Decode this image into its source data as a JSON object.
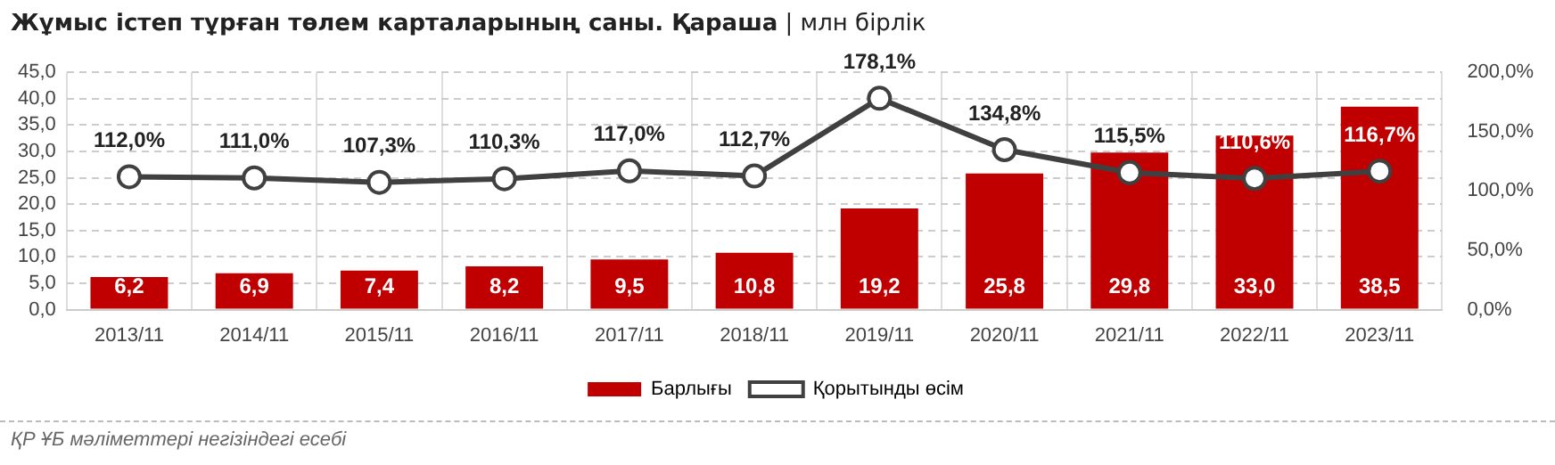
{
  "chart_data": {
    "type": "bar",
    "title": "Жұмыс істеп тұрған төлем карталарының саны. Қараша",
    "subtitle": "| млн бірлік",
    "categories": [
      "2013/11",
      "2014/11",
      "2015/11",
      "2016/11",
      "2017/11",
      "2018/11",
      "2019/11",
      "2020/11",
      "2021/11",
      "2022/11",
      "2023/11"
    ],
    "series": [
      {
        "name": "Барлығы",
        "color": "#c00000",
        "values": [
          6.2,
          6.9,
          7.4,
          8.2,
          9.5,
          10.8,
          19.2,
          25.8,
          29.8,
          33.0,
          38.5
        ],
        "value_labels": [
          "6,2",
          "6,9",
          "7,4",
          "8,2",
          "9,5",
          "10,8",
          "19,2",
          "25,8",
          "29,8",
          "33,0",
          "38,5"
        ]
      },
      {
        "name": "Қорытынды өсім",
        "type": "line",
        "axis": "y2",
        "color": "#404040",
        "marker": "circle",
        "values": [
          112.0,
          111.0,
          107.3,
          110.3,
          117.0,
          112.7,
          178.1,
          134.8,
          115.5,
          110.6,
          116.7
        ],
        "value_labels": [
          "112,0%",
          "111,0%",
          "107,3%",
          "110,3%",
          "117,0%",
          "112,7%",
          "178,1%",
          "134,8%",
          "115,5%",
          "110,6%",
          "116,7%"
        ]
      }
    ],
    "ylim": [
      0,
      45
    ],
    "yticks": [
      {
        "value": 0,
        "label": "0,0"
      },
      {
        "value": 5,
        "label": "5,0"
      },
      {
        "value": 10,
        "label": "10,0"
      },
      {
        "value": 15,
        "label": "15,0"
      },
      {
        "value": 20,
        "label": "20,0"
      },
      {
        "value": 25,
        "label": "25,0"
      },
      {
        "value": 30,
        "label": "30,0"
      },
      {
        "value": 35,
        "label": "35,0"
      },
      {
        "value": 40,
        "label": "40,0"
      },
      {
        "value": 45,
        "label": "45,0"
      }
    ],
    "y2lim": [
      0,
      200
    ],
    "y2ticks": [
      {
        "value": 0,
        "label": "0,0%"
      },
      {
        "value": 50,
        "label": "50,0%"
      },
      {
        "value": 100,
        "label": "100,0%"
      },
      {
        "value": 150,
        "label": "150,0%"
      },
      {
        "value": 200,
        "label": "200,0%"
      }
    ],
    "grid": true,
    "legend": "bottom",
    "annotations": [
      "ҚР ҰБ мәліметтері негізіндегі есебі"
    ]
  }
}
